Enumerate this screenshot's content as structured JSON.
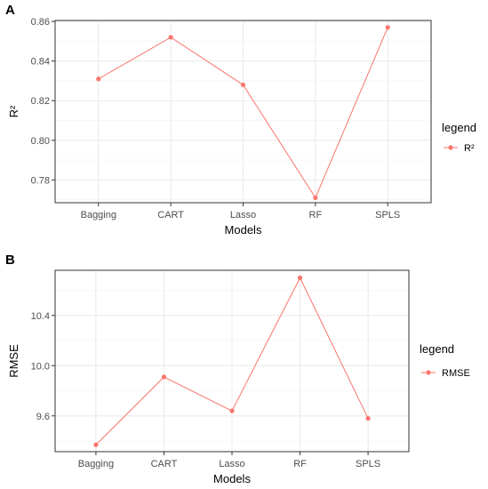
{
  "chart_data": [
    {
      "panel": "A",
      "type": "line",
      "categories": [
        "Bagging",
        "CART",
        "Lasso",
        "RF",
        "SPLS"
      ],
      "series": [
        {
          "name": "R²",
          "values": [
            0.831,
            0.852,
            0.828,
            0.771,
            0.857
          ]
        }
      ],
      "xlabel": "Models",
      "ylabel": "R²",
      "ylim": [
        0.7685,
        0.8605
      ],
      "yticks": [
        0.78,
        0.8,
        0.82,
        0.84,
        0.86
      ],
      "ytick_labels": [
        "0.78",
        "0.80",
        "0.82",
        "0.84",
        "0.86"
      ],
      "legend_title": "legend",
      "legend_position": "right",
      "grid": true,
      "color": "#F8766D"
    },
    {
      "panel": "B",
      "type": "line",
      "categories": [
        "Bagging",
        "CART",
        "Lasso",
        "RF",
        "SPLS"
      ],
      "series": [
        {
          "name": "RMSE",
          "values": [
            9.37,
            9.91,
            9.64,
            10.7,
            9.58
          ]
        }
      ],
      "xlabel": "Models",
      "ylabel": "RMSE",
      "ylim": [
        9.315,
        10.76
      ],
      "yticks": [
        9.6,
        10.0,
        10.4
      ],
      "ytick_labels": [
        "9.6",
        "10.0",
        "10.4"
      ],
      "legend_title": "legend",
      "legend_position": "right",
      "grid": true,
      "color": "#F8766D"
    }
  ]
}
